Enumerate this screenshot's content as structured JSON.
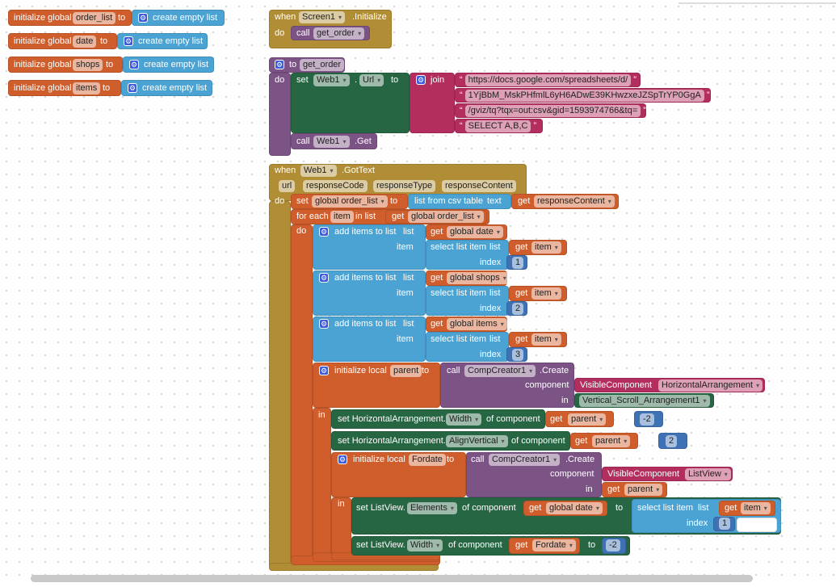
{
  "kw": {
    "init_global": "initialize global",
    "init_local": "initialize local",
    "to": "to",
    "do": "do",
    "create_empty": "create empty list",
    "when": "when",
    "call": "call",
    "set": "set",
    "get": "get",
    "dot": ".",
    "join": "join",
    "csv": "list from csv table",
    "text": "text",
    "for_each": "for each",
    "in_list": "in list",
    "add_items": "add items to list",
    "list": "list",
    "item": "item",
    "select": "select list item",
    "index": "index",
    "in": "in",
    "create": ".Create",
    "component": "component",
    "visible": "VisibleComponent",
    "of_component": "of component",
    "set_ha": "set HorizontalArrangement.",
    "set_lv": "set ListView."
  },
  "globals": [
    {
      "name": "order_list"
    },
    {
      "name": "date"
    },
    {
      "name": "shops"
    },
    {
      "name": "items"
    }
  ],
  "screen_init": {
    "component": "Screen1",
    "event": ".Initialize",
    "procedure": "get_order"
  },
  "get_order": {
    "name": "get_order",
    "component": "Web1",
    "property": "Url",
    "strings": [
      "https://docs.google.com/spreadsheets/d/",
      "1YjBbM_MskPHfmlL6yH6ADwE39KHwzxeJZSpTrYP0GgA",
      "/gviz/tq?tqx=out:csv&gid=1593974766&tq=",
      "SELECT A,B,C"
    ],
    "call_component": "Web1",
    "method": ".Get"
  },
  "got_text": {
    "component": "Web1",
    "event": ".GotText",
    "params": [
      "url",
      "responseCode",
      "responseType",
      "responseContent"
    ],
    "var": "global order_list",
    "loop_var": "item",
    "add_targets": [
      "global date",
      "global shops",
      "global items"
    ],
    "indices": [
      "1",
      "2",
      "3"
    ],
    "parent": {
      "name": "parent",
      "creator": "CompCreator1",
      "type": "HorizontalArrangement",
      "container": "Vertical_Scroll_Arrangement1"
    },
    "ha_width": {
      "property": "Width",
      "value": "-2"
    },
    "ha_align": {
      "property": "AlignVertical",
      "value": "2"
    },
    "fordate": {
      "name": "Fordate",
      "creator": "CompCreator1",
      "type": "ListView"
    },
    "lv_elements": {
      "property": "Elements",
      "index": "1"
    },
    "lv_width": {
      "property": "Width",
      "value": "-2"
    }
  },
  "colors": {
    "variable": "#D05E2C",
    "list": "#4BA3D4",
    "procedure": "#7C5385",
    "component": "#266643",
    "text": "#B32D5E",
    "event": "#B18E35",
    "math": "#3F71B5"
  }
}
